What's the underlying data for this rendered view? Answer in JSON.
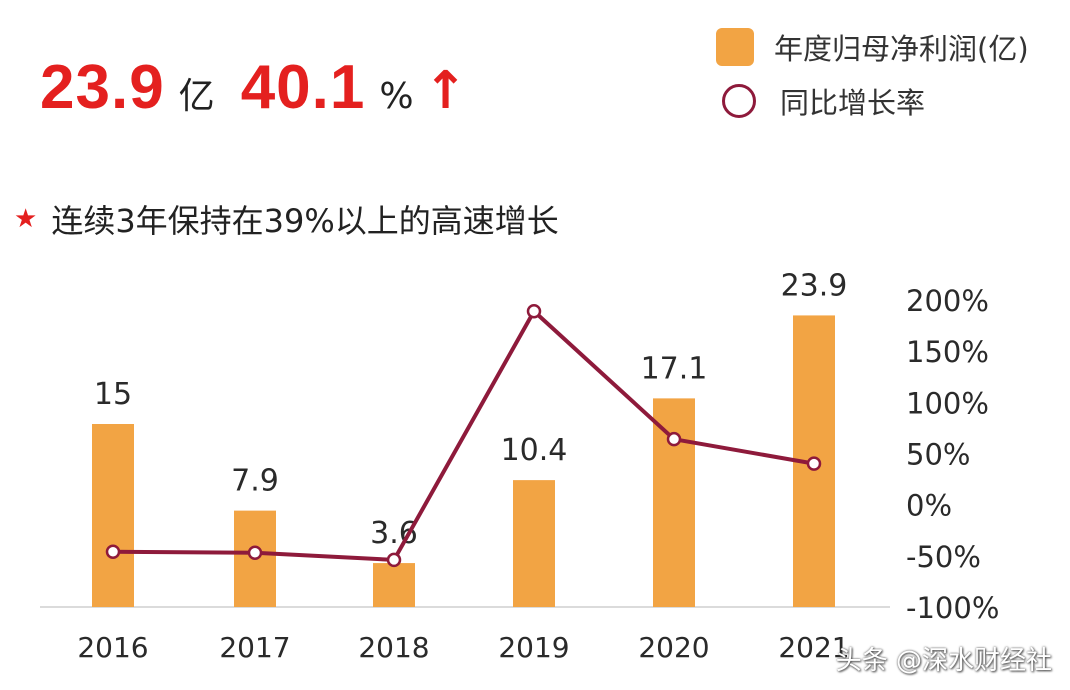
{
  "headline": {
    "profit_value": "23.9",
    "profit_unit": "亿",
    "growth_value": "40.1",
    "growth_unit": "%",
    "arrow_icon": "up-arrow"
  },
  "legend": {
    "bar_label": "年度归母净利润(亿)",
    "line_label": "同比增长率"
  },
  "note": {
    "icon": "star",
    "text": "连续3年保持在39%以上的高速增长"
  },
  "watermark": "头条 @深水财经社",
  "colors": {
    "bar": "#f2a444",
    "line": "#8e1a3b",
    "highlight": "#e4201f"
  },
  "chart_data": {
    "type": "bar+line",
    "categories": [
      "2016",
      "2017",
      "2018",
      "2019",
      "2020",
      "2021"
    ],
    "series": [
      {
        "name": "年度归母净利润(亿)",
        "type": "bar",
        "axis": "left",
        "values": [
          15,
          7.9,
          3.6,
          10.4,
          17.1,
          23.9
        ],
        "labels": [
          "15",
          "7.9",
          "3.6",
          "10.4",
          "17.1",
          "23.9"
        ]
      },
      {
        "name": "同比增长率",
        "type": "line",
        "axis": "right",
        "values": [
          -46,
          -47,
          -54,
          189,
          64,
          40.1
        ]
      }
    ],
    "right_axis": {
      "ticks": [
        "200%",
        "150%",
        "100%",
        "50%",
        "0%",
        "-50%",
        "-100%"
      ],
      "ylim": [
        -100,
        200
      ]
    },
    "left_axis_visible": false,
    "grid": false,
    "legend_position": "top-right"
  }
}
